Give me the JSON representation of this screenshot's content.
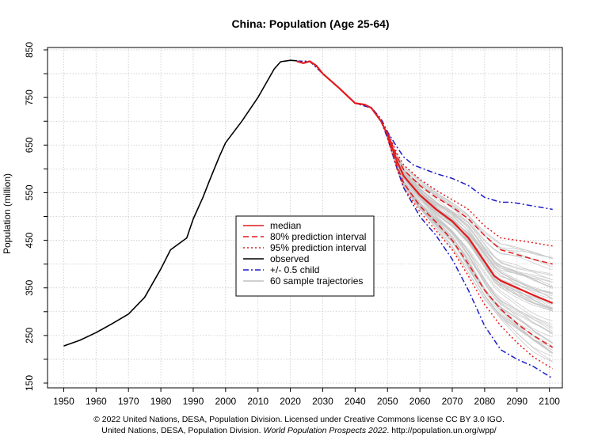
{
  "chart_data": {
    "type": "line",
    "title": "China: Population (Age 25-64)",
    "xlabel": "",
    "ylabel": "Population (million)",
    "xlim": [
      1945,
      2104
    ],
    "ylim": [
      140,
      855
    ],
    "x_ticks": [
      1950,
      1960,
      1970,
      1980,
      1990,
      2000,
      2010,
      2020,
      2030,
      2040,
      2050,
      2060,
      2070,
      2080,
      2090,
      2100
    ],
    "y_ticks": [
      150,
      250,
      350,
      450,
      550,
      650,
      750,
      850
    ],
    "grid": true,
    "legend_position": "center",
    "legend": [
      {
        "label": "median",
        "color": "#e31a1c",
        "dash": "solid"
      },
      {
        "label": "80% prediction interval",
        "color": "#e31a1c",
        "dash": "dashed"
      },
      {
        "label": "95% prediction interval",
        "color": "#e31a1c",
        "dash": "dotted"
      },
      {
        "label": "observed",
        "color": "#000000",
        "dash": "solid"
      },
      {
        "label": "+/- 0.5 child",
        "color": "#1c1cc8",
        "dash": "dashdot"
      },
      {
        "label": "60 sample trajectories",
        "color": "#c0c0c0",
        "dash": "solid"
      }
    ],
    "series": [
      {
        "name": "observed",
        "color": "#000000",
        "x": [
          1950,
          1955,
          1960,
          1965,
          1970,
          1975,
          1980,
          1983,
          1985,
          1988,
          1990,
          1993,
          1995,
          1998,
          2000,
          2005,
          2010,
          2015,
          2017,
          2020,
          2022
        ],
        "y": [
          228,
          240,
          256,
          275,
          295,
          330,
          390,
          430,
          440,
          455,
          495,
          540,
          575,
          625,
          655,
          700,
          750,
          810,
          825,
          828,
          827
        ]
      },
      {
        "name": "median",
        "color": "#e31a1c",
        "x": [
          2022,
          2024,
          2026,
          2028,
          2030,
          2035,
          2040,
          2043,
          2045,
          2048,
          2050,
          2053,
          2055,
          2060,
          2065,
          2070,
          2075,
          2080,
          2083,
          2085,
          2090,
          2095,
          2101
        ],
        "y": [
          826,
          822,
          826,
          817,
          800,
          770,
          738,
          735,
          728,
          700,
          672,
          615,
          585,
          545,
          515,
          490,
          455,
          405,
          375,
          365,
          350,
          335,
          318
        ]
      },
      {
        "name": "80% PI upper",
        "color": "#e31a1c",
        "x": [
          2050,
          2053,
          2055,
          2060,
          2065,
          2070,
          2075,
          2080,
          2085,
          2090,
          2095,
          2101
        ],
        "y": [
          675,
          625,
          598,
          565,
          540,
          520,
          495,
          460,
          430,
          420,
          410,
          400
        ]
      },
      {
        "name": "80% PI lower",
        "color": "#e31a1c",
        "x": [
          2050,
          2053,
          2055,
          2060,
          2065,
          2070,
          2075,
          2080,
          2085,
          2090,
          2095,
          2101
        ],
        "y": [
          668,
          605,
          570,
          522,
          488,
          450,
          400,
          345,
          305,
          275,
          250,
          225
        ]
      },
      {
        "name": "95% PI upper",
        "color": "#e31a1c",
        "x": [
          2050,
          2053,
          2055,
          2060,
          2065,
          2070,
          2075,
          2080,
          2085,
          2090,
          2095,
          2101
        ],
        "y": [
          678,
          632,
          608,
          578,
          555,
          535,
          515,
          480,
          455,
          450,
          445,
          438
        ]
      },
      {
        "name": "95% PI lower",
        "color": "#e31a1c",
        "x": [
          2050,
          2053,
          2055,
          2060,
          2065,
          2070,
          2075,
          2080,
          2085,
          2090,
          2095,
          2101
        ],
        "y": [
          665,
          598,
          560,
          510,
          470,
          430,
          375,
          315,
          270,
          235,
          205,
          180
        ]
      },
      {
        "name": "+0.5 child",
        "color": "#1c1cc8",
        "x": [
          2022,
          2026,
          2030,
          2035,
          2040,
          2045,
          2048,
          2050,
          2053,
          2055,
          2058,
          2060,
          2065,
          2070,
          2075,
          2080,
          2085,
          2088,
          2090,
          2095,
          2101
        ],
        "y": [
          826,
          826,
          800,
          770,
          738,
          729,
          705,
          678,
          645,
          625,
          608,
          603,
          590,
          580,
          565,
          540,
          530,
          530,
          528,
          522,
          515
        ]
      },
      {
        "name": "-0.5 child",
        "color": "#1c1cc8",
        "x": [
          2022,
          2026,
          2030,
          2035,
          2040,
          2045,
          2048,
          2050,
          2053,
          2055,
          2060,
          2065,
          2070,
          2075,
          2080,
          2085,
          2090,
          2095,
          2101
        ],
        "y": [
          826,
          826,
          800,
          770,
          738,
          728,
          700,
          665,
          600,
          560,
          500,
          460,
          410,
          345,
          270,
          220,
          200,
          185,
          160
        ]
      }
    ]
  },
  "footer": {
    "line1": "© 2022 United Nations, DESA, Population Division. Licensed under Creative Commons license CC BY 3.0 IGO.",
    "line2_prefix": "United Nations, DESA, Population Division. ",
    "line2_italic": "World Population Prospects 2022",
    "line2_suffix": ". http://population.un.org/wpp/"
  }
}
